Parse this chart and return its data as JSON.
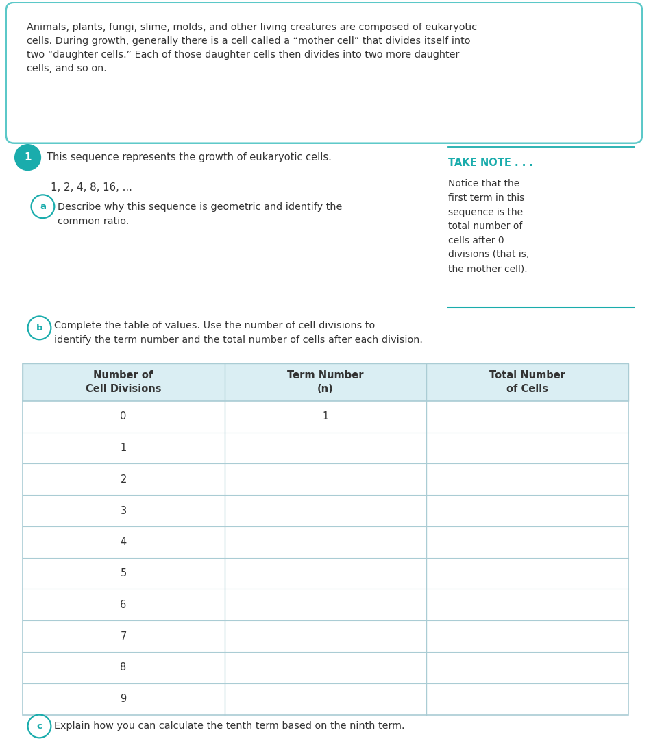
{
  "bg_color": "#ffffff",
  "border_color": "#5bc8c8",
  "text_color": "#333333",
  "teal_color": "#1aacac",
  "light_blue_header": "#daeef3",
  "intro_text_wrapped": "Animals, plants, fungi, slime, molds, and other living creatures are composed of eukaryotic\ncells. During growth, generally there is a cell called a “mother cell” that divides itself into\ntwo “daughter cells.” Each of those daughter cells then divides into two more daughter\ncells, and so on.",
  "q1_label": "1",
  "q1_text": "This sequence represents the growth of eukaryotic cells.",
  "sequence_text": "1, 2, 4, 8, 16, ...",
  "qa_label": "a",
  "qa_text": "Describe why this sequence is geometric and identify the\ncommon ratio.",
  "take_note_title": "TAKE NOTE . . .",
  "take_note_body": "Notice that the\nfirst term in this\nsequence is the\ntotal number of\ncells after 0\ndivisions (that is,\nthe mother cell).",
  "qb_label": "b",
  "qb_text": "Complete the table of values. Use the number of cell divisions to\nidentify the term number and the total number of cells after each division.",
  "table_col1": "Number of\nCell Divisions",
  "table_col2": "Term Number\n(n)",
  "table_col3": "Total Number\nof Cells",
  "table_rows": [
    [
      "0",
      "1",
      ""
    ],
    [
      "1",
      "",
      ""
    ],
    [
      "2",
      "",
      ""
    ],
    [
      "3",
      "",
      ""
    ],
    [
      "4",
      "",
      ""
    ],
    [
      "5",
      "",
      ""
    ],
    [
      "6",
      "",
      ""
    ],
    [
      "7",
      "",
      ""
    ],
    [
      "8",
      "",
      ""
    ],
    [
      "9",
      "",
      ""
    ]
  ],
  "qc_label": "c",
  "qc_text": "Explain how you can calculate the tenth term based on the ninth term."
}
